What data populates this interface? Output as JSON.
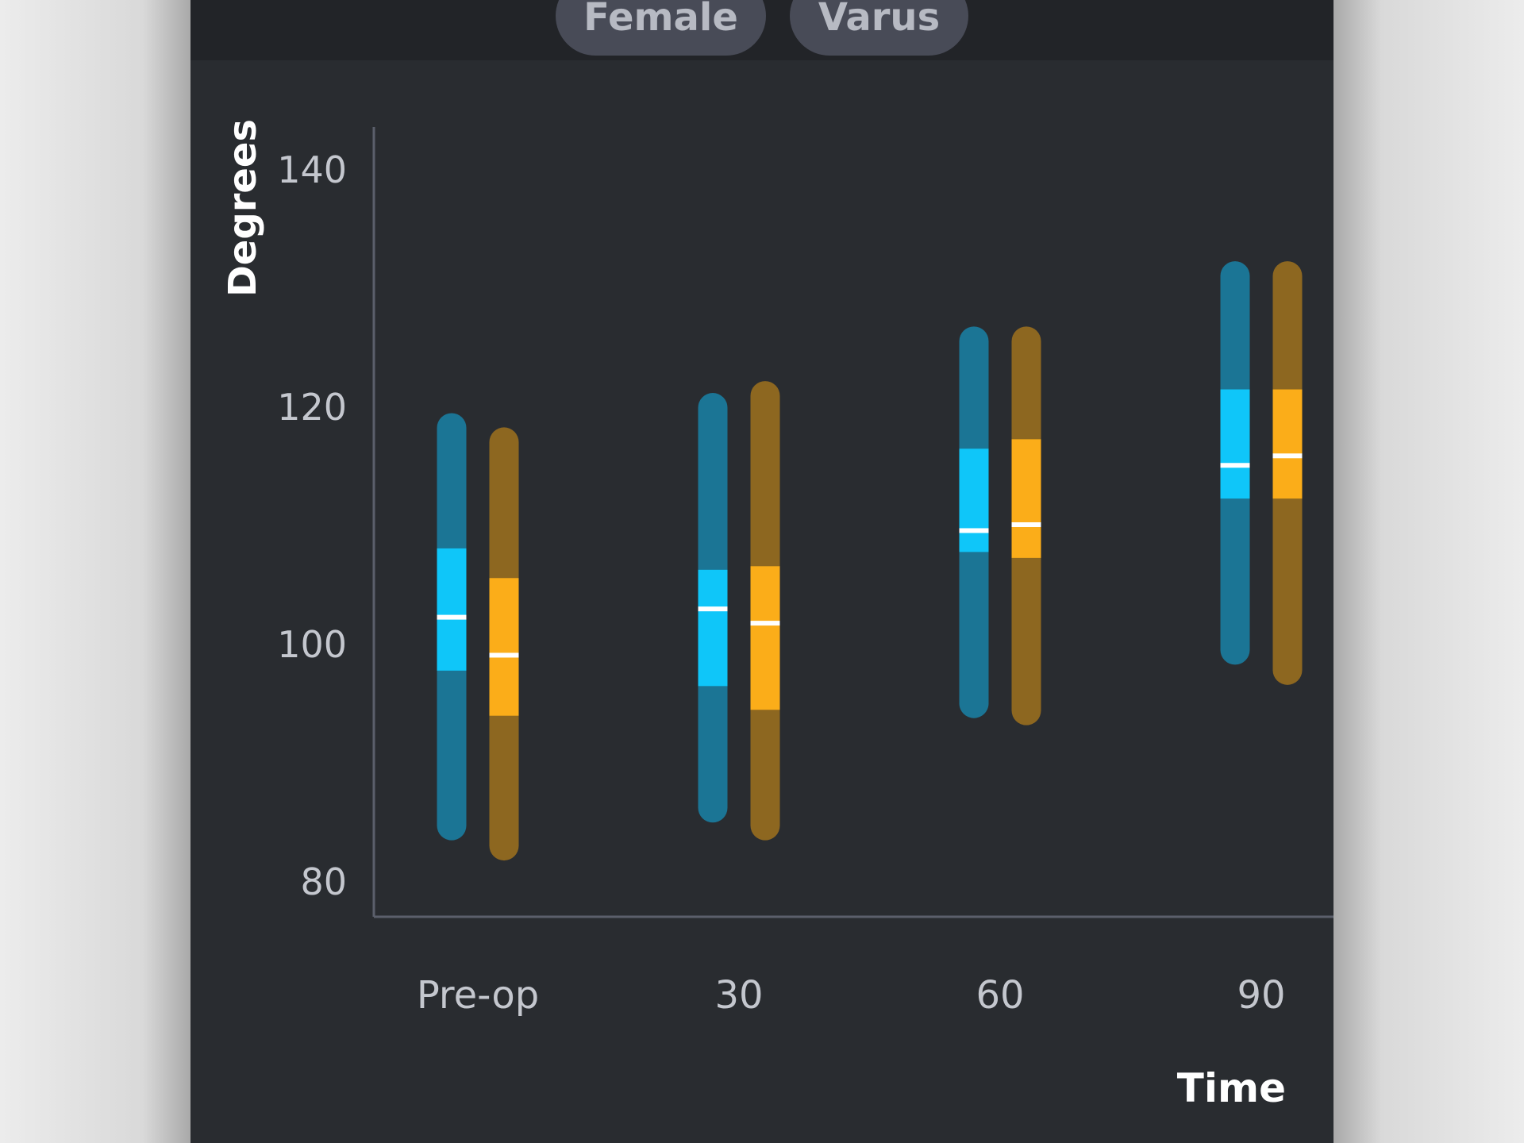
{
  "filters": {
    "chip_1": "Female",
    "chip_2": "Varus"
  },
  "chart_data": {
    "type": "box",
    "ylabel": "Degrees",
    "xlabel": "Time",
    "ylim": [
      76,
      143
    ],
    "yticks": [
      80,
      100,
      120,
      140
    ],
    "categories": [
      "Pre-op",
      "30",
      "60",
      "90"
    ],
    "colors": {
      "blue_whisker": "#1b7595",
      "blue_box": "#0fc6f9",
      "orange_whisker": "#8d6720",
      "orange_box": "#fbad19",
      "median": "#ffffff",
      "axis": "#5b5f6b"
    },
    "series": [
      {
        "color": "blue",
        "values": [
          {
            "min": 83.5,
            "q1": 97.8,
            "median": 102.3,
            "q3": 108.1,
            "max": 119.5
          },
          {
            "min": 85.0,
            "q1": 96.5,
            "median": 103.0,
            "q3": 106.3,
            "max": 121.2
          },
          {
            "min": 93.8,
            "q1": 107.8,
            "median": 109.6,
            "q3": 116.5,
            "max": 126.8
          },
          {
            "min": 98.3,
            "q1": 112.3,
            "median": 115.1,
            "q3": 121.5,
            "max": 132.3
          }
        ]
      },
      {
        "color": "orange",
        "values": [
          {
            "min": 81.8,
            "q1": 94.0,
            "median": 99.1,
            "q3": 105.6,
            "max": 118.3
          },
          {
            "min": 83.5,
            "q1": 94.5,
            "median": 101.8,
            "q3": 106.6,
            "max": 122.2
          },
          {
            "min": 93.2,
            "q1": 107.3,
            "median": 110.1,
            "q3": 117.3,
            "max": 126.8
          },
          {
            "min": 96.6,
            "q1": 112.3,
            "median": 115.9,
            "q3": 121.5,
            "max": 132.3
          }
        ]
      }
    ]
  }
}
